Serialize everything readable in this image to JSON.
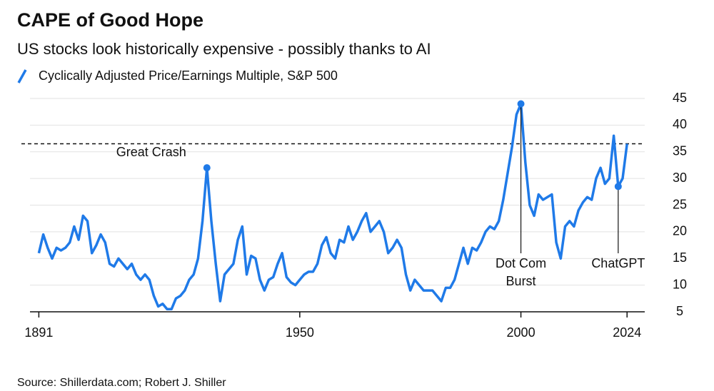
{
  "chart_data": {
    "type": "line",
    "title": "CAPE of Good Hope",
    "subtitle": "US stocks look historically expensive - possibly thanks to AI",
    "source": "Source: Shillerdata.com; Robert J. Shiller",
    "x": [
      1891,
      1892,
      1893,
      1894,
      1895,
      1896,
      1897,
      1898,
      1899,
      1900,
      1901,
      1902,
      1903,
      1904,
      1905,
      1906,
      1907,
      1908,
      1909,
      1910,
      1911,
      1912,
      1913,
      1914,
      1915,
      1916,
      1917,
      1918,
      1919,
      1920,
      1921,
      1922,
      1923,
      1924,
      1925,
      1926,
      1927,
      1928,
      1929,
      1930,
      1931,
      1932,
      1933,
      1934,
      1935,
      1936,
      1937,
      1938,
      1939,
      1940,
      1941,
      1942,
      1943,
      1944,
      1945,
      1946,
      1947,
      1948,
      1949,
      1950,
      1951,
      1952,
      1953,
      1954,
      1955,
      1956,
      1957,
      1958,
      1959,
      1960,
      1961,
      1962,
      1963,
      1964,
      1965,
      1966,
      1967,
      1968,
      1969,
      1970,
      1971,
      1972,
      1973,
      1974,
      1975,
      1976,
      1977,
      1978,
      1979,
      1980,
      1981,
      1982,
      1983,
      1984,
      1985,
      1986,
      1987,
      1988,
      1989,
      1990,
      1991,
      1992,
      1993,
      1994,
      1995,
      1996,
      1997,
      1998,
      1999,
      2000,
      2001,
      2002,
      2003,
      2004,
      2005,
      2006,
      2007,
      2008,
      2009,
      2010,
      2011,
      2012,
      2013,
      2014,
      2015,
      2016,
      2017,
      2018,
      2019,
      2020,
      2021,
      2022,
      2023,
      2024
    ],
    "series": [
      {
        "name": "Cyclically Adjusted Price/Earnings Multiple, S&P 500",
        "color": "#1f7ae8",
        "values": [
          16,
          19.5,
          17,
          15,
          17,
          16.5,
          17,
          18,
          21,
          18.5,
          23,
          22,
          16,
          17.5,
          19.5,
          18,
          14,
          13.5,
          15,
          14,
          13,
          14,
          12,
          11,
          12,
          11,
          8,
          6,
          6.5,
          5.5,
          5.5,
          7.5,
          8,
          9,
          11,
          12,
          15,
          22,
          32,
          22,
          14,
          7,
          12,
          13,
          14,
          18.5,
          21,
          12,
          15.5,
          15,
          11,
          9,
          11,
          11.5,
          14,
          16,
          11.5,
          10.5,
          10,
          11,
          12,
          12.5,
          12.5,
          14,
          17.5,
          19,
          16,
          15,
          18.5,
          18,
          21,
          18.5,
          20,
          22,
          23.5,
          20,
          21,
          22,
          20,
          16,
          17,
          18.5,
          17,
          12,
          9,
          11,
          10,
          9,
          9,
          9,
          8,
          7,
          9.5,
          9.5,
          11,
          14,
          17,
          14,
          17,
          16.5,
          18,
          20,
          21,
          20.5,
          22,
          26,
          31,
          36,
          42,
          44,
          33,
          25,
          23,
          27,
          26,
          26.5,
          27,
          18,
          15,
          21,
          22,
          21,
          24,
          25.5,
          26.5,
          26,
          30,
          32,
          29,
          30,
          38,
          28.5,
          30,
          36.5
        ]
      }
    ],
    "xlim": [
      1889,
      2028
    ],
    "xticks": [
      1891,
      1950,
      2000,
      2024
    ],
    "ylim": [
      5,
      45
    ],
    "yticks": [
      5,
      10,
      15,
      20,
      25,
      30,
      35,
      40,
      45
    ],
    "grid": true,
    "reference_line": 36.5,
    "annotations": [
      {
        "label": [
          "Great Crash"
        ],
        "x": 1929,
        "y": 32
      },
      {
        "label": [
          "Dot Com",
          "Burst"
        ],
        "x": 2000,
        "y": 44
      },
      {
        "label": [
          "ChatGPT"
        ],
        "x": 2022,
        "y": 28.5
      }
    ]
  }
}
